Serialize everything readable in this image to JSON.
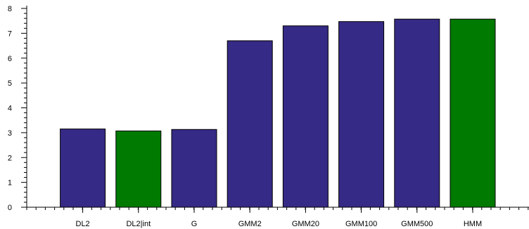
{
  "chart_data": {
    "type": "bar",
    "title": "",
    "xlabel": "",
    "ylabel": "",
    "categories": [
      "DL2",
      "DL2|int",
      "G",
      "GMM2",
      "GMM20",
      "GMM100",
      "GMM500",
      "HMM"
    ],
    "values": [
      3.15,
      3.07,
      3.13,
      6.7,
      7.3,
      7.47,
      7.57,
      7.57
    ],
    "bar_colors": [
      "#352a85",
      "#007a00",
      "#352a85",
      "#352a85",
      "#352a85",
      "#352a85",
      "#352a85",
      "#007a00"
    ],
    "ylim": [
      0,
      8
    ],
    "yticks": [
      0,
      1,
      2,
      3,
      4,
      5,
      6,
      7,
      8
    ],
    "grid": false,
    "legend": "none"
  }
}
